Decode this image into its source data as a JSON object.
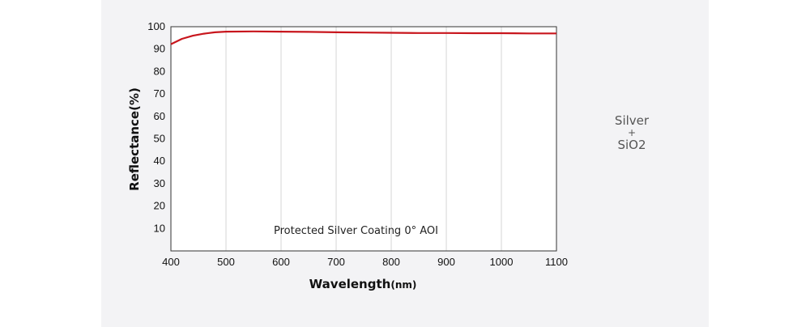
{
  "chart_data": {
    "type": "line",
    "title": "",
    "xlabel_main": "Wavelength",
    "xlabel_unit": "(nm)",
    "ylabel": "Reflectance(%)",
    "annotation": "Protected Silver Coating  0°  AOI",
    "xlim": [
      400,
      1100
    ],
    "ylim": [
      0,
      100
    ],
    "x_ticks": [
      400,
      500,
      600,
      700,
      800,
      900,
      1000,
      1100
    ],
    "y_ticks": [
      10,
      20,
      30,
      40,
      50,
      60,
      70,
      80,
      90,
      100
    ],
    "grid": true,
    "line_color": "#c8161d",
    "series": [
      {
        "x": [
          400,
          420,
          440,
          460,
          480,
          500,
          550,
          600,
          650,
          700,
          750,
          800,
          850,
          900,
          950,
          1000,
          1050,
          1100
        ],
        "y": [
          92.2,
          94.6,
          96.0,
          96.9,
          97.5,
          97.8,
          97.9,
          97.8,
          97.7,
          97.5,
          97.4,
          97.3,
          97.2,
          97.2,
          97.1,
          97.1,
          97.0,
          97.0
        ]
      }
    ]
  },
  "side_note": {
    "line1": "Silver",
    "line2": "+",
    "line3": "SiO2"
  }
}
